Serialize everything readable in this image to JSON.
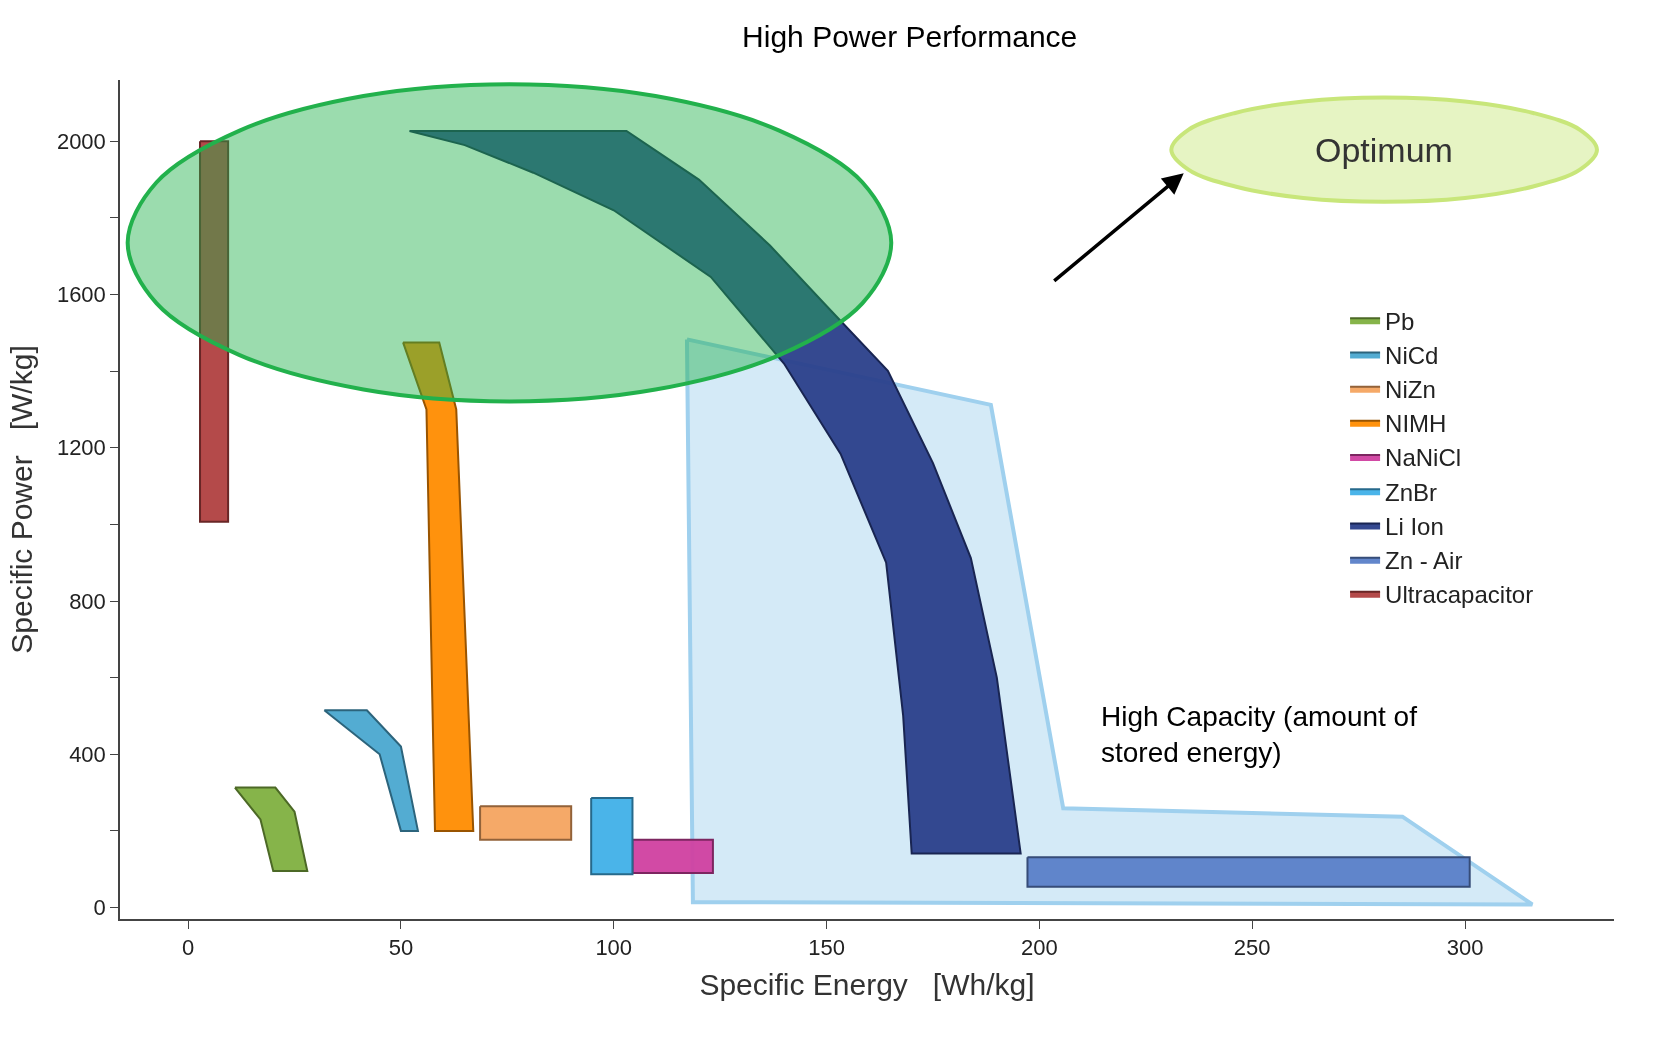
{
  "chart_data": {
    "type": "area",
    "xlabel": "Specific Energy   [Wh/kg]",
    "ylabel": "Specific Power   [W/kg]",
    "title": "High Power Performance",
    "xlim": [
      -16,
      335
    ],
    "xticks": [
      0,
      50,
      100,
      150,
      200,
      250,
      300
    ],
    "ylim": [
      -30,
      2160
    ],
    "yticks": [
      0,
      {
        "value": 200,
        "label": null
      },
      400,
      {
        "value": 600,
        "label": null
      },
      800,
      {
        "value": 1000,
        "label": null
      },
      1200,
      {
        "value": 1400,
        "label": null
      },
      1600,
      {
        "value": 1800,
        "label": null
      },
      2000
    ],
    "legend": "right",
    "annotations": [
      "Optimum",
      "High Capacity (amount of\nstored energy)"
    ],
    "series": [
      {
        "type": "area",
        "color": "#9fd0ee",
        "x": [
          117.2,
          188.6,
          205.6,
          285.3,
          315.8,
          118.6
        ],
        "values": [
          1483,
          1312,
          259,
          237,
          8,
          14
        ]
      },
      {
        "name": "Pb",
        "color": "#7fb040",
        "x": [
          11,
          20.5,
          25,
          28,
          20,
          17
        ],
        "values": [
          313,
          313,
          250,
          95,
          95,
          230
        ]
      },
      {
        "name": "NiCd",
        "color": "#4aa8d0",
        "x": [
          32,
          42,
          50,
          54,
          50,
          45
        ],
        "values": [
          515,
          515,
          420,
          200,
          200,
          400
        ]
      },
      {
        "name": "NiZn",
        "color": "#f4a460",
        "x": [
          68.6,
          90,
          90,
          68.6
        ],
        "values": [
          264,
          264,
          177,
          177
        ]
      },
      {
        "name": "NIMH",
        "color": "#ff8c00",
        "x": [
          50.5,
          59,
          63,
          67,
          58,
          56
        ],
        "values": [
          1475,
          1475,
          1300,
          200,
          200,
          1300
        ]
      },
      {
        "name": "NaNiCl",
        "color": "#d040a0",
        "x": [
          104.4,
          123.3,
          123.3,
          104.4
        ],
        "values": [
          177,
          177,
          90,
          90
        ]
      },
      {
        "name": "ZnBr",
        "color": "#40b0e8",
        "x": [
          94.7,
          104.4,
          104.4,
          94.7
        ],
        "values": [
          286,
          286,
          87,
          87
        ]
      },
      {
        "name": "Li Ion",
        "color": "#2a3f8a",
        "x": [
          52,
          103,
          120,
          136.7,
          150,
          164.4,
          175,
          183.9,
          190,
          195.6,
          170,
          168,
          164,
          153.3,
          140,
          122.8,
          100,
          81.1,
          65
        ],
        "values": [
          2027,
          2027,
          1900,
          1728,
          1570,
          1401,
          1160,
          912,
          600,
          141,
          141,
          500,
          900,
          1184,
          1420,
          1646,
          1820,
          1918,
          1990
        ]
      },
      {
        "name": "Zn - Air",
        "color": "#5a80c8",
        "x": [
          197.2,
          301.1,
          301.1,
          197.2
        ],
        "values": [
          131,
          131,
          54,
          54
        ]
      },
      {
        "name": "Ultracapacitor",
        "color": "#b04040",
        "x": [
          2.8,
          9.4,
          9.4,
          2.8
        ],
        "values": [
          2000,
          2000,
          1007,
          1007
        ]
      },
      {
        "type": "area",
        "color": "#22b14c",
        "x": [
          165.2,
          158.4,
          138.9,
          109.8,
          75.5,
          41.2,
          12.1,
          -7.4,
          -14.2,
          -7.4,
          12.1,
          41.2,
          75.5,
          109.8,
          138.9,
          158.4
        ],
        "values": [
          1735,
          1893,
          2028,
          2118,
          2149,
          2118,
          2028,
          1893,
          1735,
          1577,
          1442,
          1352,
          1321,
          1352,
          1442,
          1577
        ]
      },
      {
        "type": "area",
        "color": "#c8e67a",
        "x": [
          331,
          327,
          316,
          300,
          281,
          262,
          246,
          235,
          231,
          235,
          246,
          262,
          281,
          300,
          316,
          327
        ],
        "values": [
          1978,
          2030,
          2074,
          2104,
          2114,
          2104,
          2074,
          2030,
          1978,
          1926,
          1882,
          1852,
          1842,
          1852,
          1882,
          1926
        ]
      }
    ]
  }
}
